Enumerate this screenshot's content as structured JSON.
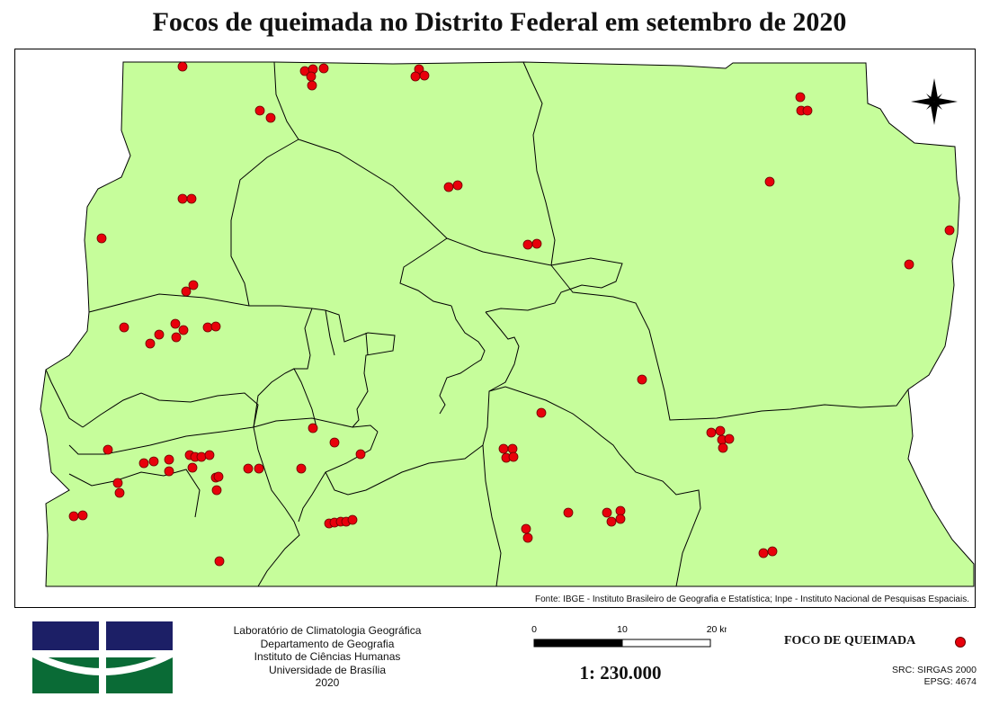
{
  "title": "Focos de queimada no Distrito Federal em setembro de 2020",
  "source": "Fonte: IBGE - Instituto Brasileiro de Geografia e Estatística; Inpe - Instituto Nacional de Pesquisas Espaciais.",
  "institution": {
    "line1": "Laboratório de Climatologia Geográfica",
    "line2": "Departamento de Geografia",
    "line3": "Instituto de Ciências Humanas",
    "line4": "Universidade de Brasília",
    "line5": "2020"
  },
  "scale_bar": {
    "tick_0": "0",
    "tick_10": "10",
    "tick_20": "20 km"
  },
  "scale_ratio": "1: 230.000",
  "legend": {
    "label": "FOCO DE QUEIMADA",
    "symbol_color": "#e8000b"
  },
  "crs": {
    "line1": "SRC: SIRGAS 2000",
    "line2": "EPSG: 4674"
  },
  "colors": {
    "land": "#c6fd9b",
    "boundary": "#000000",
    "fire_point": "#e8000b",
    "logo_blue": "#1c1f66",
    "logo_green": "#0a6b36"
  },
  "icons": {
    "north_arrow": "compass-rose-icon",
    "logo": "unb-logo-icon"
  }
}
